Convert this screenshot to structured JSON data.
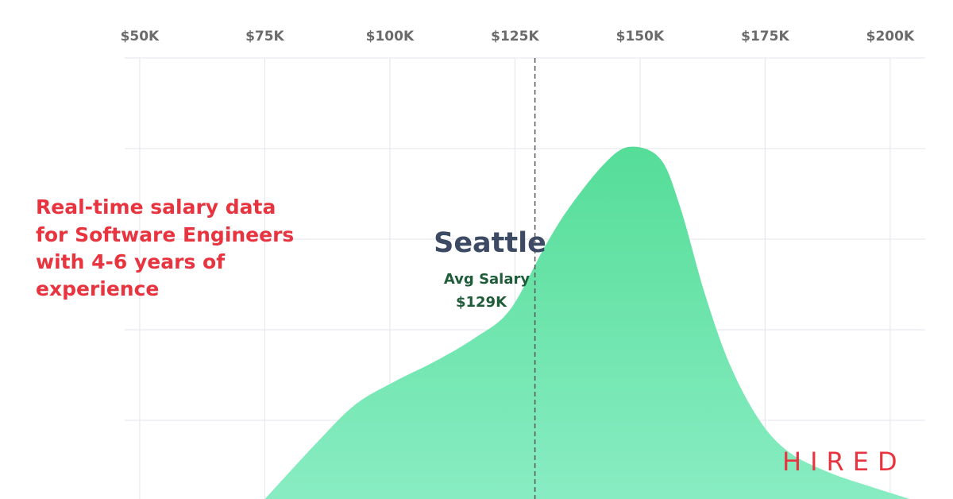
{
  "chart_data": {
    "type": "area",
    "title_lines": [
      "Real-time salary data",
      "for Software Engineers",
      "with 4-6 years of",
      "experience"
    ],
    "x": [
      75000,
      85000,
      93000,
      101000,
      109000,
      117000,
      124000,
      131000,
      136000,
      143000,
      148000,
      154000,
      158000,
      163000,
      168000,
      174000,
      180000,
      188000,
      196000,
      204000
    ],
    "values": [
      0.13,
      0.73,
      1.17,
      1.43,
      1.65,
      1.91,
      2.22,
      2.92,
      3.36,
      3.84,
      4.02,
      3.89,
      3.36,
      2.39,
      1.61,
      0.99,
      0.64,
      0.42,
      0.27,
      0.13
    ],
    "color": "#5fe0a0",
    "xlim": [
      47000,
      207000
    ],
    "xticks": [
      {
        "value": 50000,
        "label": "$50K"
      },
      {
        "value": 75000,
        "label": "$75K"
      },
      {
        "value": 100000,
        "label": "$100K"
      },
      {
        "value": 125000,
        "label": "$125K"
      },
      {
        "value": 150000,
        "label": "$150K"
      },
      {
        "value": 175000,
        "label": "$175K"
      },
      {
        "value": 200000,
        "label": "$200K"
      }
    ],
    "ylim": [
      0,
      5
    ],
    "yticks": [
      1,
      2,
      3,
      4,
      5
    ],
    "grid": true,
    "annotation": {
      "city": "Seattle",
      "label": "Avg Salary",
      "value": 129000,
      "value_label": "$129K"
    }
  },
  "logo": "HIRED"
}
